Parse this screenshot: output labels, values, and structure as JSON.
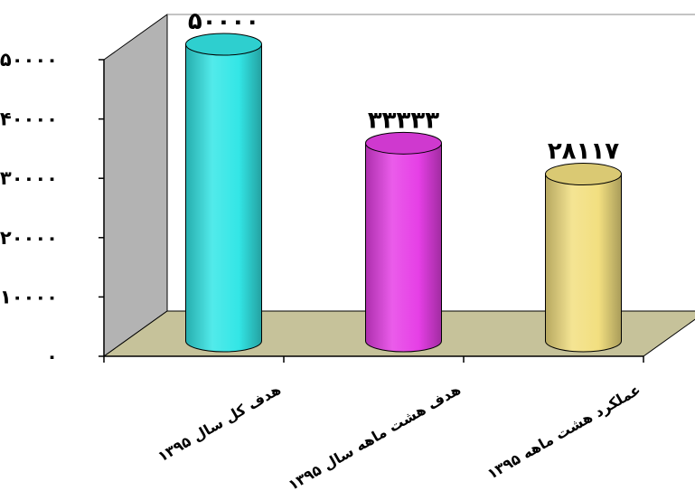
{
  "chart_data": {
    "type": "bar",
    "style": "3d-cylinder",
    "categories": [
      "هدف کل سال ۱۳۹۵",
      "هدف هشت ماهه سال ۱۳۹۵",
      "عملکرد هشت ماهه ۱۳۹۵"
    ],
    "values": [
      50000,
      33333,
      28117
    ],
    "data_labels": [
      "۵۰۰۰۰",
      "۳۳۳۳۳",
      "۲۸۱۱۷"
    ],
    "ylim": [
      0,
      50000
    ],
    "yticks": [
      0,
      10000,
      20000,
      30000,
      40000,
      50000
    ],
    "ytick_labels": [
      "۰",
      "۱۰۰۰۰",
      "۲۰۰۰۰",
      "۳۰۰۰۰",
      "۴۰۰۰۰",
      "۵۰۰۰۰"
    ],
    "colors": [
      "#33e6e6",
      "#e63fe6",
      "#f2df80"
    ],
    "wall_color": "#b3b3b3",
    "floor_color": "#c6c29a",
    "grid": false
  }
}
